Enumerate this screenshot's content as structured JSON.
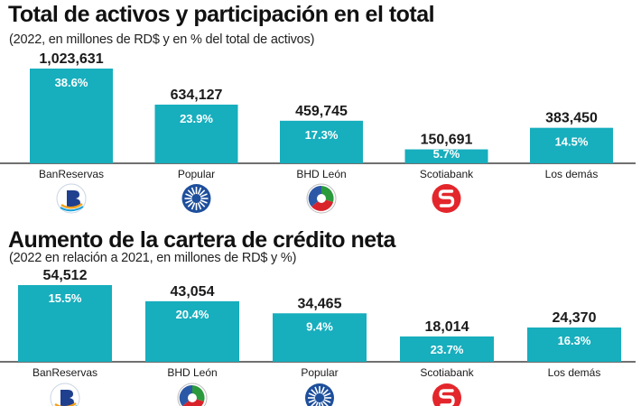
{
  "colors": {
    "bar": "#17aebd",
    "axis": "#1a1a1a",
    "label": "#1a1a1a",
    "inner_label": "#ffffff"
  },
  "chart_data": [
    {
      "type": "bar",
      "title": "Total de activos y participación en el total",
      "subtitle": "(2022, en millones de RD$ y en % del total de activos)",
      "categories": [
        "BanReservas",
        "Popular",
        "BHD León",
        "Scotiabank",
        "Los demás"
      ],
      "values": [
        1023631,
        634127,
        459745,
        150691,
        383450
      ],
      "value_labels": [
        "1,023,631",
        "634,127",
        "459,745",
        "150,691",
        "383,450"
      ],
      "share_labels": [
        "38.6%",
        "23.9%",
        "17.3%",
        "5.7%",
        "14.5%"
      ],
      "logos": [
        "banreservas-logo-icon",
        "popular-logo-icon",
        "bhd-leon-logo-icon",
        "scotiabank-logo-icon",
        "none"
      ],
      "xlabel": "",
      "ylabel": "",
      "ylim": [
        0,
        1023631
      ]
    },
    {
      "type": "bar",
      "title": "Aumento de la cartera de crédito neta",
      "subtitle": "(2022 en relación a 2021, en millones de RD$ y %)",
      "categories": [
        "BanReservas",
        "BHD León",
        "Popular",
        "Scotiabank",
        "Los demás"
      ],
      "values": [
        54512,
        43054,
        34465,
        18014,
        24370
      ],
      "value_labels": [
        "54,512",
        "43,054",
        "34,465",
        "18,014",
        "24,370"
      ],
      "share_labels": [
        "15.5%",
        "20.4%",
        "9.4%",
        "23.7%",
        "16.3%"
      ],
      "logos": [
        "banreservas-logo-icon",
        "bhd-leon-logo-icon",
        "popular-logo-icon",
        "scotiabank-logo-icon",
        "none"
      ],
      "xlabel": "",
      "ylabel": "",
      "ylim": [
        0,
        54512
      ]
    }
  ]
}
